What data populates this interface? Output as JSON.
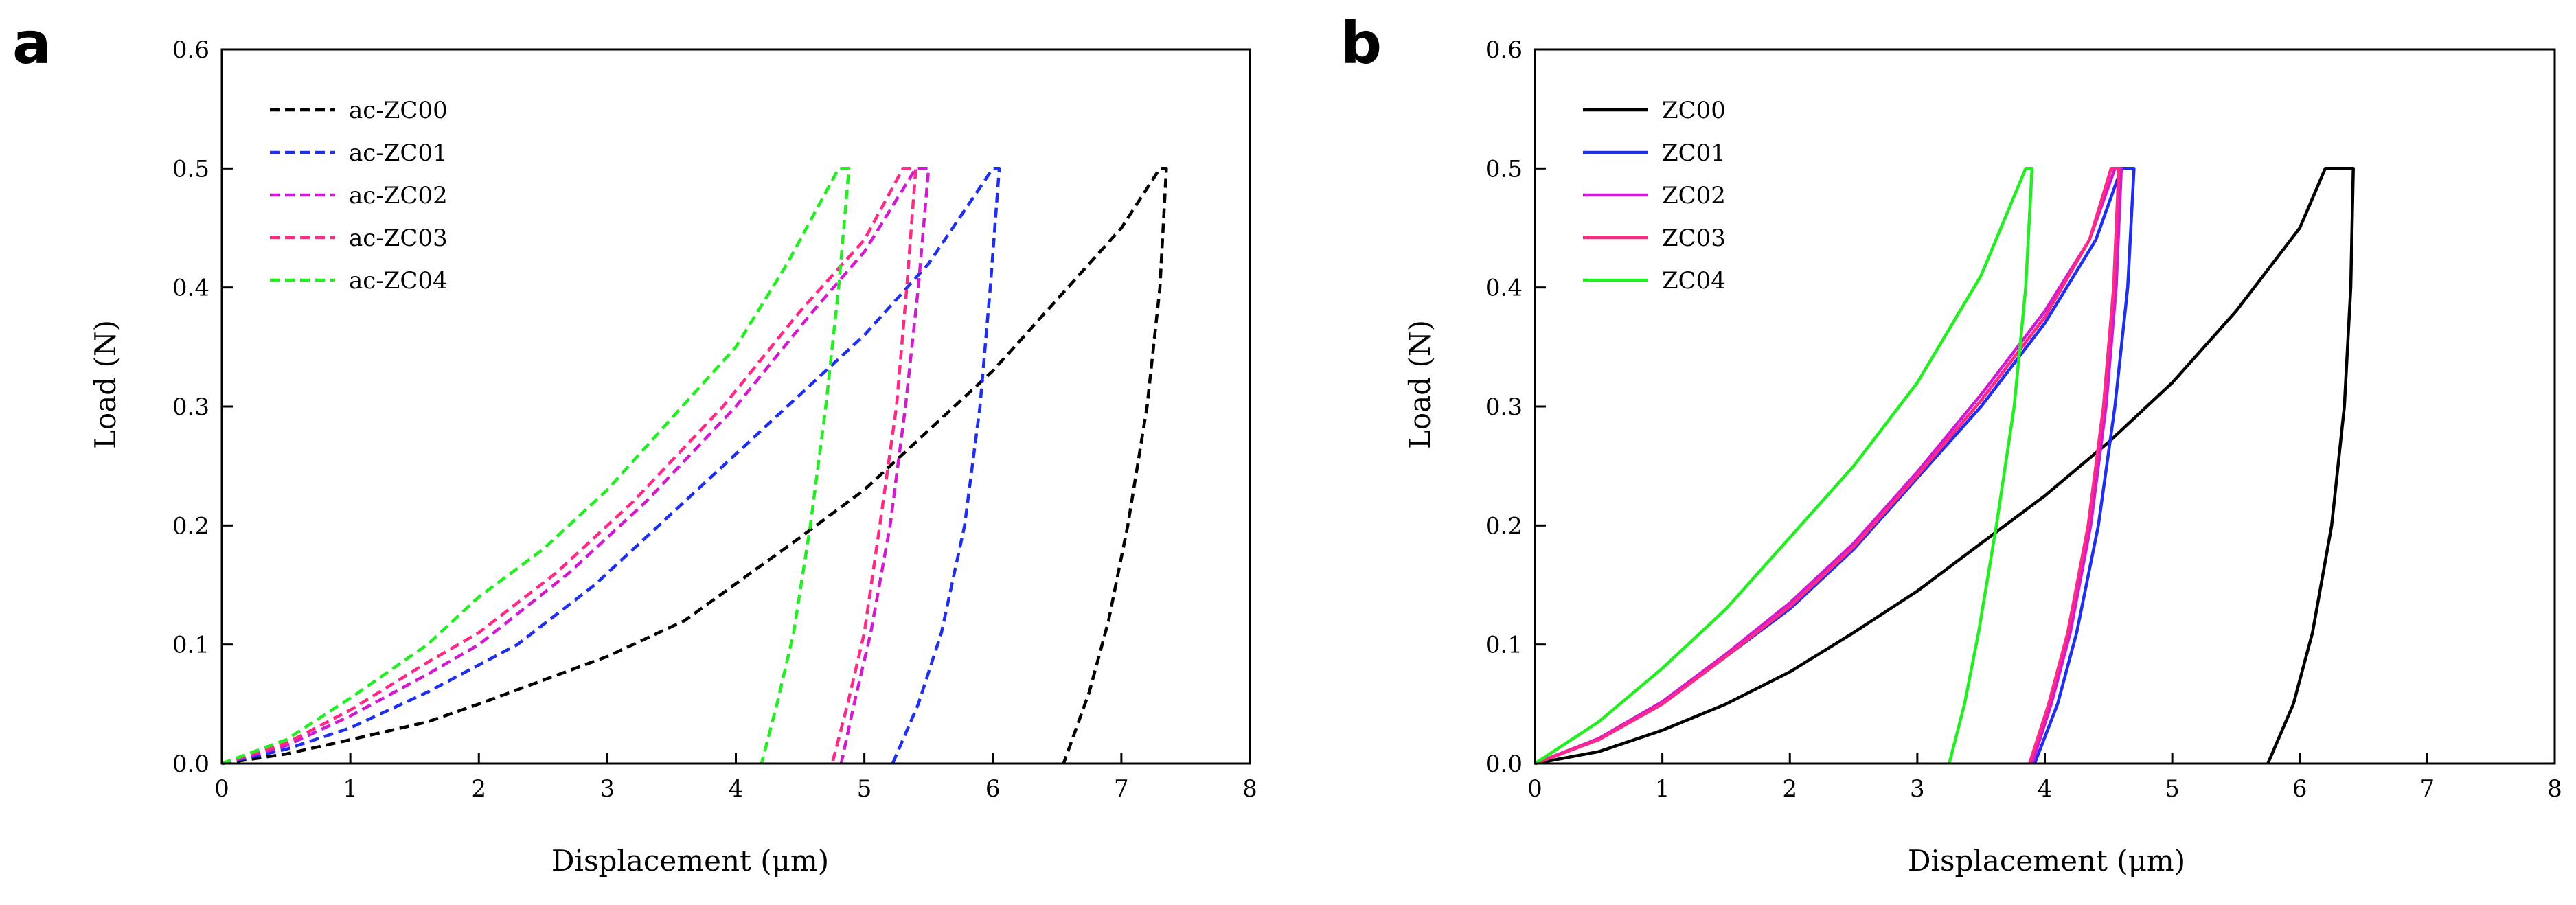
{
  "chart_data": [
    {
      "type": "line",
      "panel": "a",
      "xlabel": "Displacement (μm)",
      "ylabel": "Load (N)",
      "xlim": [
        0,
        8
      ],
      "ylim": [
        0,
        0.6
      ],
      "xticks": [
        "0",
        "1",
        "2",
        "3",
        "4",
        "5",
        "6",
        "7",
        "8"
      ],
      "yticks": [
        "0.0",
        "0.1",
        "0.2",
        "0.3",
        "0.4",
        "0.5",
        "0.6"
      ],
      "legend_position": "top-left",
      "line_style": "dashed",
      "series": [
        {
          "name": "ac-ZC00",
          "color": "#000000",
          "loading": [
            [
              0,
              0
            ],
            [
              0.5,
              0.008
            ],
            [
              1,
              0.02
            ],
            [
              1.6,
              0.035
            ],
            [
              2,
              0.05
            ],
            [
              3,
              0.09
            ],
            [
              3.6,
              0.12
            ],
            [
              4.5,
              0.19
            ],
            [
              5,
              0.23
            ],
            [
              6,
              0.33
            ],
            [
              7,
              0.45
            ],
            [
              7.3,
              0.5
            ]
          ],
          "hold": [
            [
              7.3,
              0.5
            ],
            [
              7.35,
              0.5
            ]
          ],
          "unloading": [
            [
              7.35,
              0.5
            ],
            [
              7.3,
              0.4
            ],
            [
              7.2,
              0.3
            ],
            [
              7.05,
              0.2
            ],
            [
              6.9,
              0.12
            ],
            [
              6.75,
              0.06
            ],
            [
              6.55,
              0
            ]
          ]
        },
        {
          "name": "ac-ZC01",
          "color": "#1f2ff0",
          "loading": [
            [
              0,
              0
            ],
            [
              0.5,
              0.012
            ],
            [
              1,
              0.03
            ],
            [
              1.6,
              0.06
            ],
            [
              2.3,
              0.1
            ],
            [
              2.9,
              0.15
            ],
            [
              3.5,
              0.21
            ],
            [
              4.3,
              0.29
            ],
            [
              5,
              0.36
            ],
            [
              5.5,
              0.42
            ],
            [
              6,
              0.5
            ]
          ],
          "hold": [
            [
              6,
              0.5
            ],
            [
              6.05,
              0.5
            ]
          ],
          "unloading": [
            [
              6.05,
              0.5
            ],
            [
              5.98,
              0.4
            ],
            [
              5.9,
              0.3
            ],
            [
              5.78,
              0.2
            ],
            [
              5.6,
              0.11
            ],
            [
              5.42,
              0.05
            ],
            [
              5.22,
              0
            ]
          ]
        },
        {
          "name": "ac-ZC02",
          "color": "#d21ad2",
          "loading": [
            [
              0,
              0
            ],
            [
              0.5,
              0.015
            ],
            [
              1,
              0.04
            ],
            [
              1.6,
              0.075
            ],
            [
              2,
              0.1
            ],
            [
              2.7,
              0.16
            ],
            [
              3.3,
              0.22
            ],
            [
              4,
              0.3
            ],
            [
              4.6,
              0.38
            ],
            [
              5,
              0.43
            ],
            [
              5.4,
              0.5
            ]
          ],
          "hold": [
            [
              5.4,
              0.5
            ],
            [
              5.5,
              0.5
            ]
          ],
          "unloading": [
            [
              5.5,
              0.5
            ],
            [
              5.42,
              0.4
            ],
            [
              5.32,
              0.3
            ],
            [
              5.2,
              0.2
            ],
            [
              5.05,
              0.11
            ],
            [
              4.92,
              0.05
            ],
            [
              4.82,
              0
            ]
          ]
        },
        {
          "name": "ac-ZC03",
          "color": "#ff2a86",
          "loading": [
            [
              0,
              0
            ],
            [
              0.5,
              0.017
            ],
            [
              1,
              0.045
            ],
            [
              1.6,
              0.085
            ],
            [
              2,
              0.11
            ],
            [
              2.6,
              0.16
            ],
            [
              3.2,
              0.22
            ],
            [
              3.9,
              0.3
            ],
            [
              4.5,
              0.38
            ],
            [
              5,
              0.44
            ],
            [
              5.3,
              0.5
            ]
          ],
          "hold": [
            [
              5.3,
              0.5
            ],
            [
              5.4,
              0.5
            ]
          ],
          "unloading": [
            [
              5.4,
              0.5
            ],
            [
              5.33,
              0.4
            ],
            [
              5.25,
              0.3
            ],
            [
              5.12,
              0.2
            ],
            [
              5,
              0.11
            ],
            [
              4.87,
              0.05
            ],
            [
              4.75,
              0
            ]
          ]
        },
        {
          "name": "ac-ZC04",
          "color": "#22ee22",
          "loading": [
            [
              0,
              0
            ],
            [
              0.5,
              0.02
            ],
            [
              1,
              0.055
            ],
            [
              1.6,
              0.1
            ],
            [
              2,
              0.14
            ],
            [
              2.5,
              0.18
            ],
            [
              3,
              0.23
            ],
            [
              3.5,
              0.29
            ],
            [
              4,
              0.35
            ],
            [
              4.4,
              0.42
            ],
            [
              4.8,
              0.5
            ]
          ],
          "hold": [
            [
              4.8,
              0.5
            ],
            [
              4.88,
              0.5
            ]
          ],
          "unloading": [
            [
              4.88,
              0.5
            ],
            [
              4.8,
              0.4
            ],
            [
              4.7,
              0.3
            ],
            [
              4.58,
              0.2
            ],
            [
              4.45,
              0.11
            ],
            [
              4.32,
              0.05
            ],
            [
              4.2,
              0
            ]
          ]
        }
      ]
    },
    {
      "type": "line",
      "panel": "b",
      "xlabel": "Displacement (μm)",
      "ylabel": "Load (N)",
      "xlim": [
        0,
        8
      ],
      "ylim": [
        0,
        0.6
      ],
      "xticks": [
        "0",
        "1",
        "2",
        "3",
        "4",
        "5",
        "6",
        "7",
        "8"
      ],
      "yticks": [
        "0.0",
        "0.1",
        "0.2",
        "0.3",
        "0.4",
        "0.5",
        "0.6"
      ],
      "legend_position": "top-left",
      "line_style": "solid",
      "series": [
        {
          "name": "ZC00",
          "color": "#000000",
          "loading": [
            [
              0,
              0
            ],
            [
              0.5,
              0.01
            ],
            [
              1,
              0.028
            ],
            [
              1.5,
              0.05
            ],
            [
              2,
              0.077
            ],
            [
              2.5,
              0.11
            ],
            [
              3,
              0.145
            ],
            [
              3.5,
              0.185
            ],
            [
              4,
              0.225
            ],
            [
              4.5,
              0.27
            ],
            [
              5,
              0.32
            ],
            [
              5.5,
              0.38
            ],
            [
              6,
              0.45
            ],
            [
              6.2,
              0.5
            ]
          ],
          "hold": [
            [
              6.2,
              0.5
            ],
            [
              6.42,
              0.5
            ]
          ],
          "unloading": [
            [
              6.42,
              0.5
            ],
            [
              6.4,
              0.4
            ],
            [
              6.35,
              0.3
            ],
            [
              6.25,
              0.2
            ],
            [
              6.1,
              0.11
            ],
            [
              5.95,
              0.05
            ],
            [
              5.75,
              0
            ]
          ]
        },
        {
          "name": "ZC01",
          "color": "#1f2ff0",
          "loading": [
            [
              0,
              0
            ],
            [
              0.5,
              0.02
            ],
            [
              1,
              0.05
            ],
            [
              1.5,
              0.09
            ],
            [
              2,
              0.13
            ],
            [
              2.5,
              0.18
            ],
            [
              3,
              0.24
            ],
            [
              3.5,
              0.3
            ],
            [
              4,
              0.37
            ],
            [
              4.4,
              0.44
            ],
            [
              4.6,
              0.5
            ]
          ],
          "hold": [
            [
              4.6,
              0.5
            ],
            [
              4.7,
              0.5
            ]
          ],
          "unloading": [
            [
              4.7,
              0.5
            ],
            [
              4.65,
              0.4
            ],
            [
              4.55,
              0.3
            ],
            [
              4.42,
              0.2
            ],
            [
              4.25,
              0.11
            ],
            [
              4.1,
              0.05
            ],
            [
              3.92,
              0
            ]
          ]
        },
        {
          "name": "ZC02",
          "color": "#d21ad2",
          "loading": [
            [
              0,
              0
            ],
            [
              0.5,
              0.021
            ],
            [
              1,
              0.052
            ],
            [
              1.5,
              0.092
            ],
            [
              2,
              0.135
            ],
            [
              2.5,
              0.185
            ],
            [
              3,
              0.245
            ],
            [
              3.5,
              0.31
            ],
            [
              4,
              0.38
            ],
            [
              4.35,
              0.44
            ],
            [
              4.55,
              0.5
            ]
          ],
          "hold": [
            [
              4.55,
              0.5
            ],
            [
              4.6,
              0.5
            ]
          ],
          "unloading": [
            [
              4.6,
              0.5
            ],
            [
              4.56,
              0.4
            ],
            [
              4.48,
              0.3
            ],
            [
              4.36,
              0.2
            ],
            [
              4.2,
              0.11
            ],
            [
              4.05,
              0.05
            ],
            [
              3.9,
              0
            ]
          ]
        },
        {
          "name": "ZC03",
          "color": "#ff2a86",
          "loading": [
            [
              0,
              0
            ],
            [
              0.5,
              0.02
            ],
            [
              1,
              0.05
            ],
            [
              1.5,
              0.09
            ],
            [
              2,
              0.132
            ],
            [
              2.5,
              0.182
            ],
            [
              3,
              0.242
            ],
            [
              3.5,
              0.305
            ],
            [
              4,
              0.375
            ],
            [
              4.35,
              0.44
            ],
            [
              4.52,
              0.5
            ]
          ],
          "hold": [
            [
              4.52,
              0.5
            ],
            [
              4.58,
              0.5
            ]
          ],
          "unloading": [
            [
              4.58,
              0.5
            ],
            [
              4.54,
              0.4
            ],
            [
              4.46,
              0.3
            ],
            [
              4.34,
              0.2
            ],
            [
              4.18,
              0.11
            ],
            [
              4.03,
              0.05
            ],
            [
              3.88,
              0
            ]
          ]
        },
        {
          "name": "ZC04",
          "color": "#22ee22",
          "loading": [
            [
              0,
              0
            ],
            [
              0.5,
              0.035
            ],
            [
              1,
              0.08
            ],
            [
              1.5,
              0.13
            ],
            [
              2,
              0.19
            ],
            [
              2.5,
              0.25
            ],
            [
              3,
              0.32
            ],
            [
              3.5,
              0.41
            ],
            [
              3.85,
              0.5
            ]
          ],
          "hold": [
            [
              3.85,
              0.5
            ],
            [
              3.9,
              0.5
            ]
          ],
          "unloading": [
            [
              3.9,
              0.5
            ],
            [
              3.85,
              0.4
            ],
            [
              3.76,
              0.3
            ],
            [
              3.62,
              0.2
            ],
            [
              3.48,
              0.11
            ],
            [
              3.37,
              0.05
            ],
            [
              3.25,
              0
            ]
          ]
        }
      ]
    }
  ]
}
